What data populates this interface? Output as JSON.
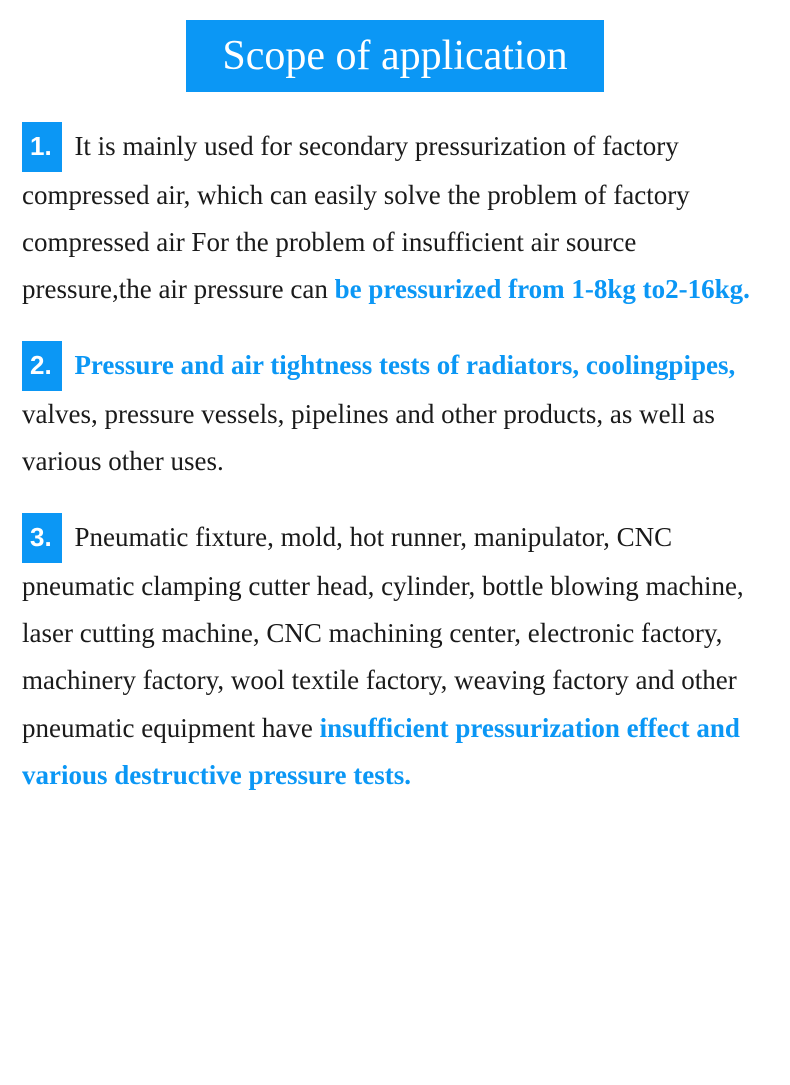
{
  "title": "Scope of application",
  "accent_color": "#0b97f5",
  "bg_color": "#ffffff",
  "text_color": "#1a1a1a",
  "title_fontsize": 42,
  "body_fontsize": 27,
  "items": [
    {
      "num": "1.",
      "pre": " It is mainly used for secondary pressurization of factory compressed air, which can easily solve the problem of factory compressed air For the problem of insufficient air source pressure,the air pressure can ",
      "hl": "be pressurized from 1-8kg to2-16kg.",
      "post": ""
    },
    {
      "num": "2.",
      "pre": " ",
      "hl": "Pressure and air tightness tests of radiators, coolingpipes,",
      "post": " valves, pressure vessels, pipelines and other products, as well as various other uses."
    },
    {
      "num": "3.",
      "pre": " Pneumatic fixture, mold, hot runner, manipulator, CNC pneumatic clamping cutter head, cylinder, bottle blowing machine, laser cutting machine, CNC machining center, electronic factory, machinery factory, wool textile factory, weaving factory and other pneumatic equipment have ",
      "hl": "insufficient pressurization effect and various destructive pressure tests.",
      "post": ""
    }
  ]
}
